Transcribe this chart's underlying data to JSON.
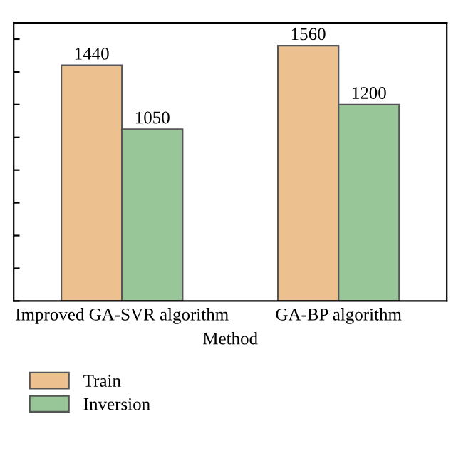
{
  "chart_data": {
    "type": "bar",
    "xlabel": "Method",
    "categories": [
      "Improved GA-SVR algorithm",
      "GA-BP algorithm"
    ],
    "series": [
      {
        "name": "Train",
        "color": "#ecc08f",
        "values": [
          1440,
          1560
        ]
      },
      {
        "name": "Inversion",
        "color": "#98c698",
        "values": [
          1050,
          1200
        ]
      }
    ],
    "ylim": [
      0,
      1700
    ],
    "yticks": [
      {
        "value": 0,
        "label": null
      },
      {
        "value": 200,
        "label": null
      },
      {
        "value": 400,
        "label": null
      },
      {
        "value": 600,
        "label": null
      },
      {
        "value": 800,
        "label": null
      },
      {
        "value": 1000,
        "label": null
      },
      {
        "value": 1200,
        "label": null
      },
      {
        "value": 1400,
        "label": null
      },
      {
        "value": 1600,
        "label": null
      }
    ],
    "tick_labels": "x",
    "data_labels": true,
    "grid": false,
    "legend": "bottom left"
  }
}
